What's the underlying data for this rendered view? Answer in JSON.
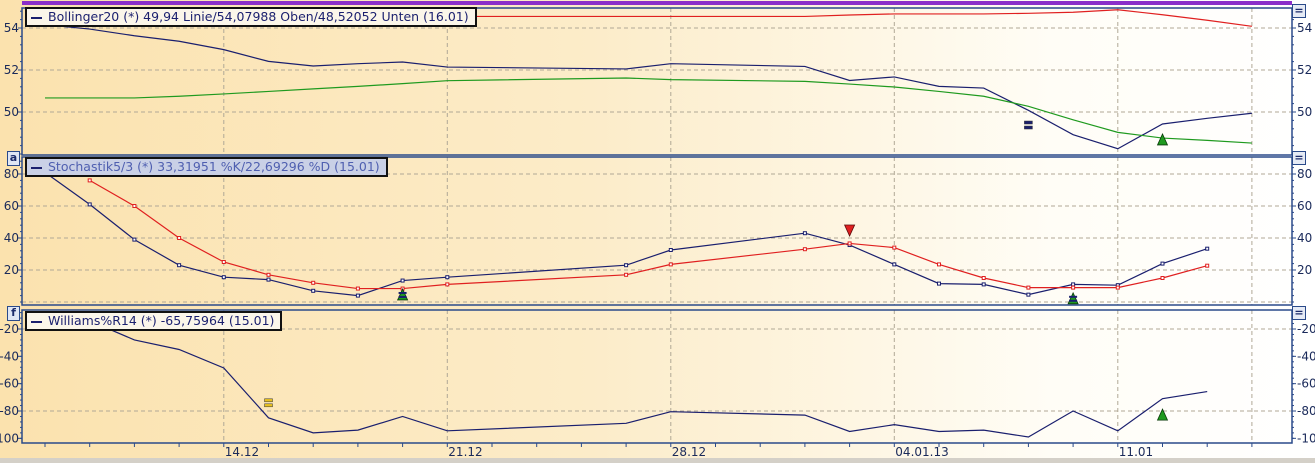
{
  "panels": {
    "bollinger": {
      "legend": "Bollinger20 (*) 49,94 Linie/54,07988 Oben/48,52052 Unten (16.01)",
      "tag": "",
      "menu_icon": "equals-icon"
    },
    "stochastic": {
      "legend": "Stochastik5/3 (*) 33,31951 %K/22,69296 %D (15.01)",
      "tag": "a",
      "menu_icon": "equals-icon"
    },
    "williams": {
      "legend": "Williams%R14 (*) -65,75964 (15.01)",
      "tag": "f",
      "menu_icon": "equals-icon"
    }
  },
  "colors": {
    "price": "#1a1f6e",
    "upper": "#e02020",
    "lower": "#1f9a1f",
    "k": "#1a1f6e",
    "d": "#e02020",
    "frame": "#2a4a8a",
    "accent_top": "#8b2fc9"
  },
  "chart_data": [
    {
      "type": "line",
      "name": "bollinger",
      "x": [
        "2012-12-10",
        "2012-12-11",
        "2012-12-12",
        "2012-12-13",
        "2012-12-14",
        "2012-12-17",
        "2012-12-18",
        "2012-12-19",
        "2012-12-20",
        "2012-12-21",
        "2012-12-27",
        "2012-12-28",
        "2013-01-02",
        "2013-01-03",
        "2013-01-04",
        "2013-01-07",
        "2013-01-08",
        "2013-01-09",
        "2013-01-10",
        "2013-01-11",
        "2013-01-14",
        "2013-01-15",
        "2013-01-16"
      ],
      "series": [
        {
          "name": "Linie",
          "values": [
            54.16,
            53.95,
            53.63,
            53.37,
            52.97,
            52.41,
            52.19,
            52.3,
            52.38,
            52.14,
            52.05,
            52.3,
            52.17,
            51.5,
            51.67,
            51.22,
            51.14,
            50.08,
            48.92,
            48.25,
            49.43,
            49.7,
            49.94
          ]
        },
        {
          "name": "Oben",
          "values": [
            54.55,
            54.55,
            54.55,
            54.55,
            54.55,
            54.55,
            54.55,
            54.55,
            54.55,
            54.55,
            54.55,
            54.55,
            54.55,
            54.62,
            54.67,
            54.67,
            54.67,
            54.7,
            54.75,
            54.87,
            54.63,
            54.37,
            54.08
          ]
        },
        {
          "name": "Unten",
          "values": [
            50.67,
            50.67,
            50.67,
            50.75,
            50.86,
            50.98,
            51.1,
            51.22,
            51.35,
            51.49,
            51.62,
            51.54,
            51.46,
            51.33,
            51.19,
            50.98,
            50.75,
            50.27,
            49.63,
            49.03,
            48.76,
            48.65,
            48.52
          ]
        }
      ],
      "yticks": [
        "54",
        "52",
        "50"
      ],
      "ytick_values": [
        54,
        52,
        50
      ],
      "ylim": [
        48.1,
        55.0
      ],
      "grid": true,
      "markers": [
        {
          "date": "2013-01-09",
          "value": 49.38,
          "type": "equals",
          "color": "#1a1f6e"
        },
        {
          "date": "2013-01-14",
          "value": 48.67,
          "type": "triangle-up",
          "color": "#1f9a1f"
        }
      ]
    },
    {
      "type": "line",
      "name": "stochastic",
      "x": [
        "2012-12-10",
        "2012-12-11",
        "2012-12-12",
        "2012-12-13",
        "2012-12-14",
        "2012-12-17",
        "2012-12-18",
        "2012-12-19",
        "2012-12-20",
        "2012-12-21",
        "2012-12-27",
        "2012-12-28",
        "2013-01-02",
        "2013-01-03",
        "2013-01-04",
        "2013-01-07",
        "2013-01-08",
        "2013-01-09",
        "2013-01-10",
        "2013-01-11",
        "2013-01-14",
        "2013-01-15"
      ],
      "series": [
        {
          "name": "%K",
          "values": [
            81,
            61,
            39,
            23,
            15.5,
            14,
            7,
            4,
            13.4,
            15.5,
            23,
            32.5,
            43,
            35.6,
            23.5,
            11.5,
            11,
            4.6,
            11,
            10.5,
            24,
            33.32
          ]
        },
        {
          "name": "%D",
          "values": [
            null,
            76,
            60,
            40,
            25,
            17,
            12,
            8.4,
            8.4,
            11,
            17,
            23.5,
            33,
            36.6,
            34,
            23.5,
            15,
            9,
            9,
            9,
            15,
            22.69
          ]
        }
      ],
      "yticks": [
        "80",
        "60",
        "40",
        "20"
      ],
      "ytick_values": [
        80,
        60,
        40,
        20
      ],
      "ylim": [
        -2,
        90
      ],
      "grid": true,
      "markers": [
        {
          "date": "2012-12-20",
          "value": 4.4,
          "type": "triangle-up-equals",
          "color": "#1f9a1f"
        },
        {
          "date": "2013-01-03",
          "value": 45,
          "type": "triangle-down",
          "color": "#e02020"
        },
        {
          "date": "2013-01-10",
          "value": 2,
          "type": "triangle-up-equals",
          "color": "#1f9a1f"
        }
      ]
    },
    {
      "type": "line",
      "name": "williams",
      "x": [
        "2012-12-10",
        "2012-12-11",
        "2012-12-12",
        "2012-12-13",
        "2012-12-14",
        "2012-12-17",
        "2012-12-18",
        "2012-12-19",
        "2012-12-20",
        "2012-12-21",
        "2012-12-27",
        "2012-12-28",
        "2013-01-02",
        "2013-01-03",
        "2013-01-04",
        "2013-01-07",
        "2013-01-08",
        "2013-01-09",
        "2013-01-10",
        "2013-01-11",
        "2013-01-14",
        "2013-01-15"
      ],
      "series": [
        {
          "name": "%R",
          "values": [
            -8,
            -14,
            -28,
            -35,
            -48.5,
            -85,
            -96,
            -94,
            -84,
            -94.5,
            -89,
            -80.5,
            -83,
            -95,
            -90,
            -95,
            -94,
            -99,
            -80,
            -94.5,
            -71,
            -65.76
          ]
        }
      ],
      "yticks": [
        "-20",
        "-40",
        "-60",
        "-80",
        "-100"
      ],
      "ytick_values": [
        -20,
        -40,
        -60,
        -80,
        -100
      ],
      "ylim": [
        -104,
        -6
      ],
      "grid_values": [
        -20,
        -80
      ],
      "markers": [
        {
          "date": "2012-12-17",
          "value": -74,
          "type": "equals",
          "color": "#e8c020"
        },
        {
          "date": "2013-01-14",
          "value": -83,
          "type": "triangle-up",
          "color": "#1f9a1f"
        }
      ]
    }
  ],
  "x_axis": {
    "labels": [
      "14.12",
      "21.12",
      "28.12",
      "04.01.13",
      "11.01"
    ],
    "label_dates": [
      "2012-12-14",
      "2012-12-21",
      "2012-12-28",
      "2013-01-04",
      "2013-01-11"
    ]
  }
}
